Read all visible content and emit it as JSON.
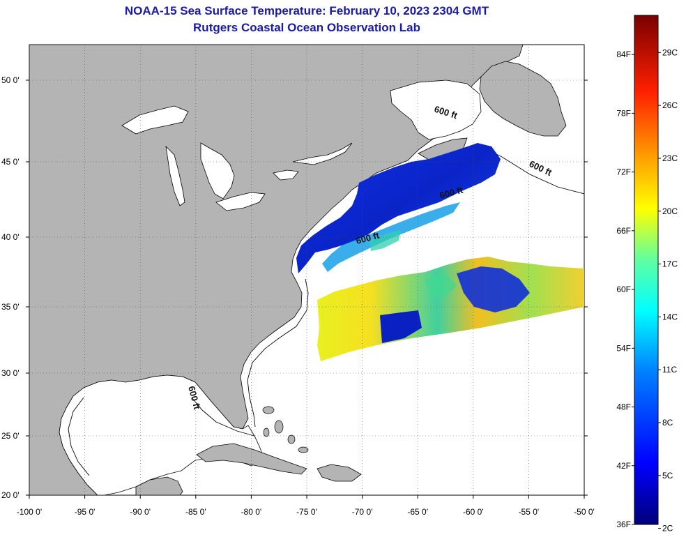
{
  "header": {
    "title": "NOAA-15 Sea Surface Temperature:  February 10, 2023 2304 GMT",
    "subtitle": "Rutgers Coastal Ocean Observation Lab"
  },
  "map": {
    "lon_range": [
      -100,
      -50
    ],
    "lat_range": [
      20,
      52.5
    ],
    "lon_ticks": [
      "-100 0'",
      "-95 0'",
      "-90 0'",
      "-85 0'",
      "-80 0'",
      "-75 0'",
      "-70 0'",
      "-65 0'",
      "-60 0'",
      "-55 0'",
      "-50 0'"
    ],
    "lat_ticks": [
      "20 0'",
      "25 0'",
      "30 0'",
      "35 0'",
      "40 0'",
      "45 0'",
      "50 0'"
    ],
    "grid": "dotted",
    "land_color": "#b4b4b4",
    "ocean_color": "#ffffff",
    "contour_label": "600 ft",
    "contour_labels": [
      "600 ft",
      "600 ft",
      "600 ft",
      "600 ft",
      "600 ft"
    ]
  },
  "colorbar": {
    "fahrenheit_labels": [
      "36F",
      "42F",
      "48F",
      "54F",
      "60F",
      "66F",
      "72F",
      "78F",
      "84F"
    ],
    "celsius_labels": [
      "2C",
      "5C",
      "8C",
      "11C",
      "14C",
      "17C",
      "20C",
      "23C",
      "26C",
      "29C"
    ],
    "colors": [
      "#000080",
      "#0000ff",
      "#0080ff",
      "#00ffff",
      "#80ff80",
      "#ffff00",
      "#ff8000",
      "#ff0000",
      "#800000"
    ]
  }
}
